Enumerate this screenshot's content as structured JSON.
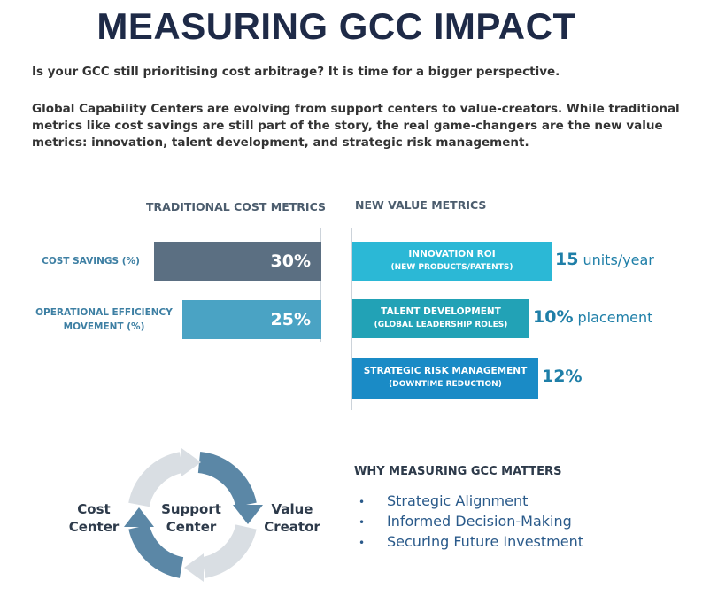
{
  "title": "MEASURING GCC IMPACT",
  "intro": "Is your GCC still prioritising cost arbitrage? It is time for a bigger perspective.",
  "body": "Global Capability Centers are evolving from support centers to value-creators. While traditional metrics like cost savings are still part of the story, the real game-changers are the new value metrics: innovation, talent development, and strategic risk management.",
  "traditional": {
    "heading": "TRADITIONAL COST METRICS",
    "items": [
      {
        "label": "COST SAVINGS (%)",
        "value": 30,
        "value_label": "30%",
        "color": "#5b6f82"
      },
      {
        "label": "OPERATIONAL EFFICIENCY MOVEMENT (%)",
        "value": 25,
        "value_label": "25%",
        "color": "#4aa3c4"
      }
    ]
  },
  "new": {
    "heading": "NEW VALUE METRICS",
    "items": [
      {
        "label": "INNOVATION ROI",
        "sublabel": "(NEW PRODUCTS/PATENTS)",
        "value": 15,
        "value_label": "15",
        "unit": "units/year",
        "color": "#2bb8d6"
      },
      {
        "label": "TALENT DEVELOPMENT",
        "sublabel": "(GLOBAL LEADERSHIP ROLES)",
        "value": 10,
        "value_label": "10%",
        "unit": "placement",
        "color": "#22a2b6"
      },
      {
        "label": "STRATEGIC RISK MANAGEMENT",
        "sublabel": "(DOWNTIME REDUCTION)",
        "value": 12,
        "value_label": "12%",
        "color": "#1a8bc6"
      }
    ]
  },
  "cycle": {
    "left": "Cost Center",
    "center": "Support Center",
    "right": "Value Creator"
  },
  "matters": {
    "heading": "WHY MEASURING GCC MATTERS",
    "items": [
      "Strategic Alignment",
      "Informed Decision-Making",
      "Securing Future Investment"
    ]
  }
}
